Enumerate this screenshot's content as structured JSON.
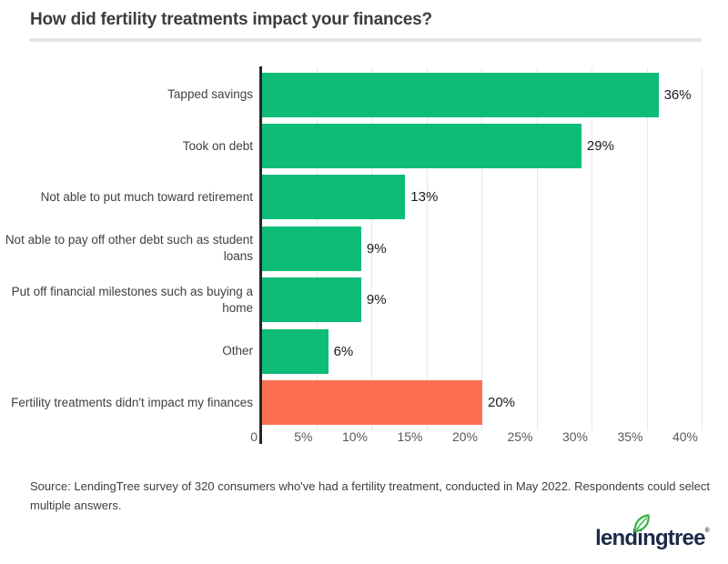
{
  "chart_data": {
    "type": "bar",
    "orientation": "horizontal",
    "title": "How did fertility treatments impact your finances?",
    "xlabel": "",
    "ylabel": "",
    "xlim": [
      0,
      40
    ],
    "grid": "vertical gridlines every 5 percent, legend none",
    "xticks": [
      {
        "value": 0,
        "label": "0"
      },
      {
        "value": 5,
        "label": "5%"
      },
      {
        "value": 10,
        "label": "10%"
      },
      {
        "value": 15,
        "label": "15%"
      },
      {
        "value": 20,
        "label": "20%"
      },
      {
        "value": 25,
        "label": "25%"
      },
      {
        "value": 30,
        "label": "30%"
      },
      {
        "value": 35,
        "label": "35%"
      },
      {
        "value": 40,
        "label": "40%"
      }
    ],
    "categories": [
      "Tapped savings",
      "Took on debt",
      "Not able to put much toward retirement",
      "Not able to pay off other debt such as student loans",
      "Put off financial milestones such as buying a home",
      "Other",
      "Fertility treatments didn't impact my finances"
    ],
    "values": [
      36,
      29,
      13,
      9,
      9,
      6,
      20
    ],
    "value_labels": [
      "36%",
      "29%",
      "13%",
      "9%",
      "9%",
      "6%",
      "20%"
    ],
    "bar_colors": [
      "#0dbc77",
      "#0dbc77",
      "#0dbc77",
      "#0dbc77",
      "#0dbc77",
      "#0dbc77",
      "#fd6e51"
    ]
  },
  "footer": {
    "source_text": "Source: LendingTree survey of 320 consumers who've had a fertility treatment, conducted in May 2022. Respondents could select multiple answers.",
    "logo_text": "lendingtree",
    "logo_mark": "®"
  },
  "colors": {
    "bar_green": "#0dbc77",
    "bar_orange": "#fd6e51",
    "axis": "#232629",
    "gridline": "#e7e7e7",
    "divider": "#e4e4e4",
    "title_text": "#3b3d40",
    "logo_navy": "#1d2b49",
    "leaf_green": "#3cb54a"
  }
}
